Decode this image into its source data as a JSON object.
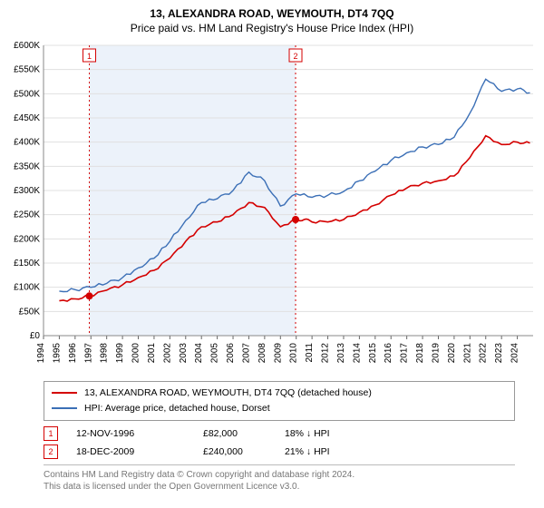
{
  "title_main": "13, ALEXANDRA ROAD, WEYMOUTH, DT4 7QQ",
  "title_sub": "Price paid vs. HM Land Registry's House Price Index (HPI)",
  "chart": {
    "type": "line",
    "background_color": "#ffffff",
    "shaded_band_color": "#ecf2fa",
    "grid_color": "#e0e0e0",
    "tx_vline_color": "#d40000",
    "tx_vline_dash": "2,3",
    "marker_fill": "#d40000",
    "marker_radius": 4,
    "tx_box_border": "#d40000",
    "tx_box_fill": "#ffffff",
    "tx_box_text": "#d40000",
    "axis_font_size": 10,
    "x_label_rotation": -90,
    "y_label_prefix": "£",
    "y_min": 0,
    "y_max": 600000,
    "y_step": 50000,
    "y_ticks": [
      "£0",
      "£50K",
      "£100K",
      "£150K",
      "£200K",
      "£250K",
      "£300K",
      "£350K",
      "£400K",
      "£450K",
      "£500K",
      "£550K",
      "£600K"
    ],
    "x_min": 1994,
    "x_max": 2025,
    "x_ticks": [
      1994,
      1995,
      1996,
      1997,
      1998,
      1999,
      2000,
      2001,
      2002,
      2003,
      2004,
      2005,
      2006,
      2007,
      2008,
      2009,
      2010,
      2011,
      2012,
      2013,
      2014,
      2015,
      2016,
      2017,
      2018,
      2019,
      2020,
      2021,
      2022,
      2023,
      2024
    ],
    "series": [
      {
        "id": "property",
        "label": "13, ALEXANDRA ROAD, WEYMOUTH, DT4 7QQ (detached house)",
        "color": "#d40000",
        "width": 1.6,
        "data": [
          [
            1995,
            72000
          ],
          [
            1996,
            76000
          ],
          [
            1996.9,
            82000
          ],
          [
            1998,
            94000
          ],
          [
            1999,
            105000
          ],
          [
            2000,
            120000
          ],
          [
            2001,
            135000
          ],
          [
            2002,
            160000
          ],
          [
            2003,
            195000
          ],
          [
            2004,
            225000
          ],
          [
            2005,
            235000
          ],
          [
            2006,
            250000
          ],
          [
            2007,
            275000
          ],
          [
            2008,
            265000
          ],
          [
            2009,
            225000
          ],
          [
            2009.96,
            240000
          ],
          [
            2010.5,
            240000
          ],
          [
            2011,
            235000
          ],
          [
            2012,
            235000
          ],
          [
            2013,
            240000
          ],
          [
            2014,
            255000
          ],
          [
            2015,
            270000
          ],
          [
            2016,
            290000
          ],
          [
            2017,
            305000
          ],
          [
            2018,
            315000
          ],
          [
            2019,
            320000
          ],
          [
            2020,
            330000
          ],
          [
            2021,
            368000
          ],
          [
            2022,
            413000
          ],
          [
            2023,
            395000
          ],
          [
            2024,
            400000
          ],
          [
            2024.8,
            398000
          ]
        ]
      },
      {
        "id": "hpi",
        "label": "HPI: Average price, detached house, Dorset",
        "color": "#3b6fb6",
        "width": 1.4,
        "data": [
          [
            1995,
            92000
          ],
          [
            1996,
            95000
          ],
          [
            1997,
            100000
          ],
          [
            1998,
            108000
          ],
          [
            1999,
            120000
          ],
          [
            2000,
            140000
          ],
          [
            2001,
            160000
          ],
          [
            2002,
            195000
          ],
          [
            2003,
            238000
          ],
          [
            2004,
            275000
          ],
          [
            2005,
            283000
          ],
          [
            2006,
            300000
          ],
          [
            2007,
            338000
          ],
          [
            2008,
            320000
          ],
          [
            2009,
            268000
          ],
          [
            2010,
            293000
          ],
          [
            2011,
            286000
          ],
          [
            2012,
            290000
          ],
          [
            2013,
            298000
          ],
          [
            2014,
            320000
          ],
          [
            2015,
            340000
          ],
          [
            2016,
            362000
          ],
          [
            2017,
            378000
          ],
          [
            2018,
            390000
          ],
          [
            2019,
            395000
          ],
          [
            2020,
            410000
          ],
          [
            2021,
            460000
          ],
          [
            2022,
            530000
          ],
          [
            2023,
            505000
          ],
          [
            2024,
            510000
          ],
          [
            2024.8,
            502000
          ]
        ]
      }
    ],
    "shaded_band": {
      "from": 1996.9,
      "to": 2009.96
    },
    "transactions": [
      {
        "n": "1",
        "year": 1996.9,
        "price": 82000
      },
      {
        "n": "2",
        "year": 2009.96,
        "price": 240000
      }
    ]
  },
  "legend": {
    "rows": [
      {
        "color": "#d40000",
        "text": "13, ALEXANDRA ROAD, WEYMOUTH, DT4 7QQ (detached house)"
      },
      {
        "color": "#3b6fb6",
        "text": "HPI: Average price, detached house, Dorset"
      }
    ]
  },
  "tx_table": [
    {
      "n": "1",
      "date": "12-NOV-1996",
      "price": "£82,000",
      "delta": "18% ↓ HPI"
    },
    {
      "n": "2",
      "date": "18-DEC-2009",
      "price": "£240,000",
      "delta": "21% ↓ HPI"
    }
  ],
  "footer_line1": "Contains HM Land Registry data © Crown copyright and database right 2024.",
  "footer_line2": "This data is licensed under the Open Government Licence v3.0."
}
